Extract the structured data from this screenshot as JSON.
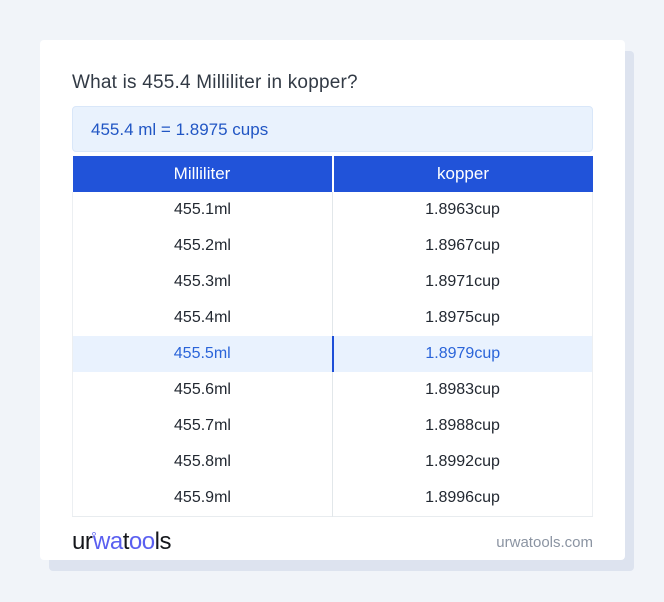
{
  "page": {
    "title": "What is 455.4 Milliliter in kopper?",
    "result_text": "455.4 ml = 1.8975 cups",
    "site_domain": "urwatools.com"
  },
  "logo": {
    "part1": "ur",
    "degree": "°",
    "part2": "wa",
    "part3": "t",
    "part4": "oo",
    "part5": "ls",
    "full_name": "urwatools"
  },
  "table": {
    "headers": [
      "Milliliter",
      "kopper"
    ],
    "rows": [
      {
        "ml": "455.1ml",
        "cup": "1.8963cup",
        "highlighted": false
      },
      {
        "ml": "455.2ml",
        "cup": "1.8967cup",
        "highlighted": false
      },
      {
        "ml": "455.3ml",
        "cup": "1.8971cup",
        "highlighted": false
      },
      {
        "ml": "455.4ml",
        "cup": "1.8975cup",
        "highlighted": false
      },
      {
        "ml": "455.5ml",
        "cup": "1.8979cup",
        "highlighted": true
      },
      {
        "ml": "455.6ml",
        "cup": "1.8983cup",
        "highlighted": false
      },
      {
        "ml": "455.7ml",
        "cup": "1.8988cup",
        "highlighted": false
      },
      {
        "ml": "455.8ml",
        "cup": "1.8992cup",
        "highlighted": false
      },
      {
        "ml": "455.9ml",
        "cup": "1.8996cup",
        "highlighted": false
      }
    ]
  },
  "colors": {
    "accent": "#2153d9",
    "result_bg": "#e9f2fd",
    "result_text": "#2156c4",
    "highlight_bg": "#e9f2fe",
    "highlight_text": "#2a64d9",
    "logo_blue": "#5a5ff0",
    "page_bg": "#f1f4f9"
  }
}
